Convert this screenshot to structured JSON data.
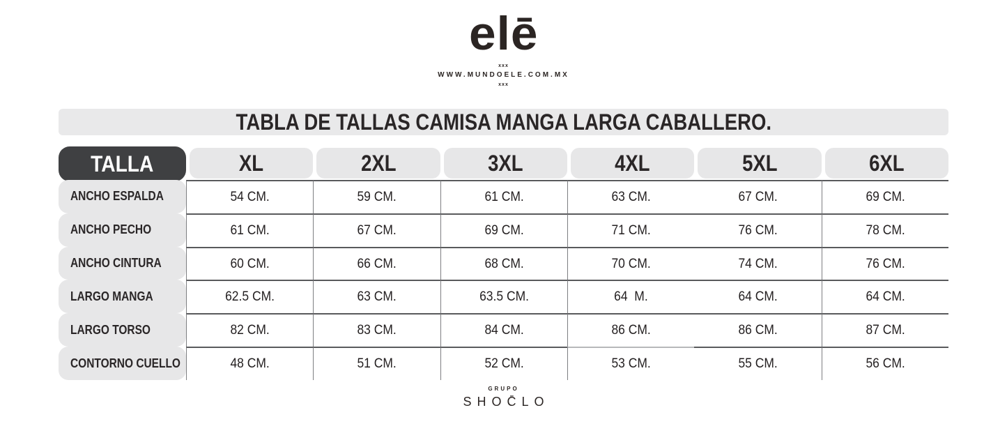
{
  "brand": {
    "logo": "elē",
    "xxx_top": "xxx",
    "website": "WWW.MUNDOELE.COM.MX",
    "xxx_bottom": "xxx"
  },
  "title": "TABLA DE TALLAS CAMISA MANGA LARGA CABALLERO.",
  "footer": {
    "grupo": "GRUPO",
    "name": "SHOC̄LO"
  },
  "colors": {
    "dark_header": "#3f4042",
    "light_gray": "#e7e7e8",
    "title_bar": "#e9e9ea",
    "text": "#231f20",
    "row_line": "#595a5c",
    "column_line": "#7d7e81",
    "faded_line_segment": "#b7b8ba"
  },
  "chart_data": {
    "type": "table",
    "title": "TABLA DE TALLAS CAMISA MANGA LARGA CABALLERO.",
    "corner_label": "TALLA",
    "columns": [
      "XL",
      "2XL",
      "3XL",
      "4XL",
      "5XL",
      "6XL"
    ],
    "rows": [
      {
        "label": "ANCHO ESPALDA",
        "values": [
          "54 CM.",
          "59 CM.",
          "61 CM.",
          "63 CM.",
          "67 CM.",
          "69 CM."
        ]
      },
      {
        "label": "ANCHO PECHO",
        "values": [
          "61 CM.",
          "67 CM.",
          "69 CM.",
          "71 CM.",
          "76 CM.",
          "78 CM."
        ]
      },
      {
        "label": "ANCHO CINTURA",
        "values": [
          "60 CM.",
          "66 CM.",
          "68 CM.",
          "70 CM.",
          "74 CM.",
          "76 CM."
        ]
      },
      {
        "label": "LARGO MANGA",
        "values": [
          "62.5 CM.",
          "63 CM.",
          "63.5 CM.",
          "64  M.",
          "64 CM.",
          "64 CM."
        ]
      },
      {
        "label": "LARGO TORSO",
        "values": [
          "82 CM.",
          "83 CM.",
          "84 CM.",
          "86 CM.",
          "86 CM.",
          "87 CM."
        ]
      },
      {
        "label": "CONTORNO CUELLO",
        "values": [
          "48 CM.",
          "51 CM.",
          "52 CM.",
          "53 CM.",
          "55 CM.",
          "56 CM."
        ]
      }
    ],
    "units": "CM.",
    "layout": {
      "grid": "horizontal row lines between all rows; vertical column lines except between 4XL and 5XL; no outer right/bottom border"
    }
  }
}
